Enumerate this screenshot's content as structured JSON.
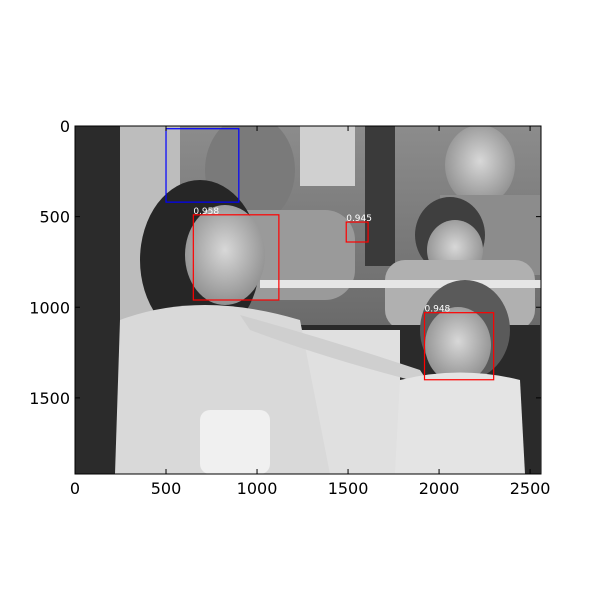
{
  "image": {
    "description_icon": "photo-subway-passengers-grayscale",
    "colors": {
      "detection_box": "#ff0000",
      "reference_box": "#0000ff",
      "axes": "#000000"
    }
  },
  "axes": {
    "x_ticks": [
      "0",
      "500",
      "1000",
      "1500",
      "2000",
      "2500"
    ],
    "y_ticks": [
      "0",
      "500",
      "1000",
      "1500"
    ],
    "xlim": [
      0,
      2560
    ],
    "ylim": [
      1920,
      0
    ]
  },
  "detections": [
    {
      "label": "0.958",
      "x1": 650,
      "y1": 490,
      "x2": 1120,
      "y2": 960,
      "kind": "detection"
    },
    {
      "label": "0.945",
      "x1": 1490,
      "y1": 530,
      "x2": 1610,
      "y2": 640,
      "kind": "detection"
    },
    {
      "label": "0.948",
      "x1": 1920,
      "y1": 1030,
      "x2": 2300,
      "y2": 1400,
      "kind": "detection"
    },
    {
      "label": "",
      "x1": 500,
      "y1": 15,
      "x2": 900,
      "y2": 420,
      "kind": "reference"
    }
  ]
}
